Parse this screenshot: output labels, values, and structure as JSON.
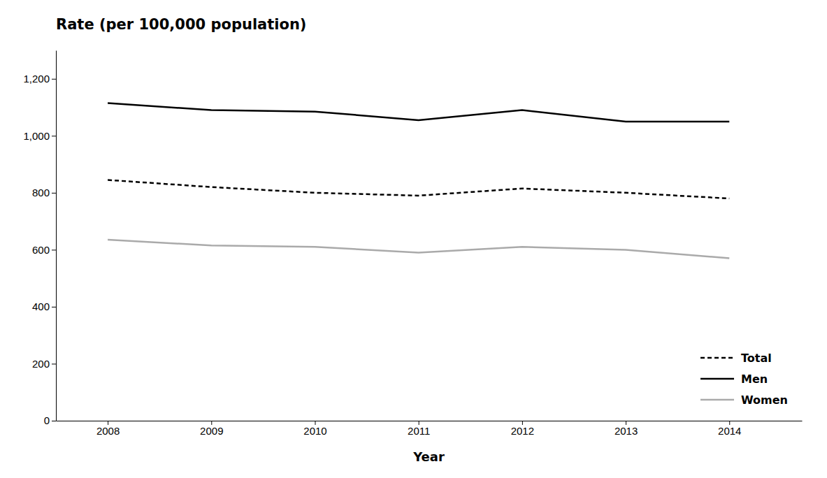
{
  "chart_data": {
    "type": "line",
    "title": "Rate (per 100,000 population)",
    "x_label": "Year",
    "x": [
      2008,
      2009,
      2010,
      2011,
      2012,
      2013,
      2014
    ],
    "series": [
      {
        "name": "Total",
        "color": "#000000",
        "line_style": "dashed",
        "values": [
          845,
          820,
          800,
          790,
          815,
          800,
          780
        ]
      },
      {
        "name": "Men",
        "color": "#000000",
        "line_style": "solid",
        "values": [
          1115,
          1090,
          1085,
          1055,
          1090,
          1050,
          1050
        ]
      },
      {
        "name": "Women",
        "color": "#aaaaaa",
        "line_style": "solid",
        "values": [
          635,
          615,
          610,
          590,
          610,
          600,
          570
        ]
      }
    ],
    "xlim": [
      2007.5,
      2014.7
    ],
    "xticks": [
      2008,
      2009,
      2010,
      2011,
      2012,
      2013,
      2014
    ],
    "ylim": [
      0,
      1300
    ],
    "yticks": [
      0,
      200,
      400,
      600,
      800,
      {
        "value": 1000,
        "label": "1,000"
      },
      {
        "value": 1200,
        "label": "1,200"
      }
    ],
    "grid": false,
    "legend": "lower right"
  }
}
